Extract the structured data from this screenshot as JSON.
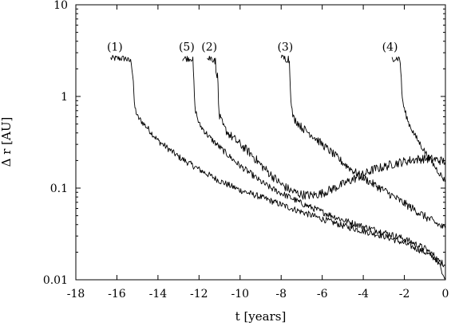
{
  "chart_data": {
    "type": "line",
    "title": "",
    "xlabel": "t [years]",
    "ylabel": "Δ r [AU]",
    "xlim": [
      -18,
      0
    ],
    "ylim": [
      0.01,
      10
    ],
    "yscale": "log",
    "grid": false,
    "x_ticks": [
      -18,
      -16,
      -14,
      -12,
      -10,
      -8,
      -6,
      -4,
      -2,
      0
    ],
    "y_ticks": [
      0.01,
      0.1,
      1,
      10
    ],
    "x_tick_labels": [
      "-18",
      "-16",
      "-14",
      "-12",
      "-10",
      "-8",
      "-6",
      "-4",
      "-2",
      "0"
    ],
    "y_tick_labels": [
      "0.01",
      "0.1",
      "1",
      "10"
    ],
    "annotations": [
      {
        "text": "(1)",
        "x": -16.1,
        "y": 3.5
      },
      {
        "text": "(5)",
        "x": -12.6,
        "y": 3.5
      },
      {
        "text": "(2)",
        "x": -11.5,
        "y": 3.5
      },
      {
        "text": "(3)",
        "x": -7.8,
        "y": 3.5
      },
      {
        "text": "(4)",
        "x": -2.7,
        "y": 3.5
      }
    ],
    "series": [
      {
        "label": "(1)",
        "color": "#000000",
        "noise": 0.035,
        "points": [
          [
            -16.3,
            2.6
          ],
          [
            -15.55,
            2.6
          ],
          [
            -15.5,
            2.5
          ],
          [
            -15.3,
            2.4
          ],
          [
            -15.2,
            1.5
          ],
          [
            -15.15,
            0.8
          ],
          [
            -15.0,
            0.6
          ],
          [
            -14.5,
            0.45
          ],
          [
            -14.0,
            0.33
          ],
          [
            -13.0,
            0.22
          ],
          [
            -12.0,
            0.16
          ],
          [
            -11.0,
            0.12
          ],
          [
            -10.0,
            0.095
          ],
          [
            -9.0,
            0.08
          ],
          [
            -8.0,
            0.066
          ],
          [
            -7.0,
            0.055
          ],
          [
            -6.0,
            0.046
          ],
          [
            -5.0,
            0.039
          ],
          [
            -4.0,
            0.034
          ],
          [
            -3.0,
            0.03
          ],
          [
            -2.0,
            0.025
          ],
          [
            -1.0,
            0.02
          ],
          [
            -0.5,
            0.017
          ],
          [
            0.0,
            0.0145
          ]
        ]
      },
      {
        "label": "(5)",
        "color": "#000000",
        "noise": 0.035,
        "points": [
          [
            -12.8,
            2.6
          ],
          [
            -12.35,
            2.6
          ],
          [
            -12.3,
            2.5
          ],
          [
            -12.25,
            1.4
          ],
          [
            -12.2,
            0.75
          ],
          [
            -12.0,
            0.5
          ],
          [
            -11.5,
            0.36
          ],
          [
            -11.0,
            0.28
          ],
          [
            -10.5,
            0.22
          ],
          [
            -10.0,
            0.175
          ],
          [
            -9.5,
            0.145
          ],
          [
            -9.0,
            0.118
          ],
          [
            -8.5,
            0.1
          ],
          [
            -8.0,
            0.088
          ],
          [
            -7.5,
            0.078
          ],
          [
            -7.0,
            0.068
          ],
          [
            -6.0,
            0.055
          ],
          [
            -5.0,
            0.045
          ],
          [
            -4.0,
            0.038
          ],
          [
            -3.0,
            0.033
          ],
          [
            -2.0,
            0.028
          ],
          [
            -1.0,
            0.022
          ],
          [
            -0.5,
            0.018
          ],
          [
            0.0,
            0.0105
          ]
        ]
      },
      {
        "label": "(2)",
        "color": "#000000",
        "noise": 0.05,
        "points": [
          [
            -11.6,
            2.6
          ],
          [
            -11.25,
            2.6
          ],
          [
            -11.2,
            2.4
          ],
          [
            -11.15,
            1.6
          ],
          [
            -11.1,
            2.0
          ],
          [
            -11.05,
            0.8
          ],
          [
            -11.0,
            0.6
          ],
          [
            -10.8,
            0.46
          ],
          [
            -10.5,
            0.38
          ],
          [
            -10.0,
            0.3
          ],
          [
            -9.5,
            0.24
          ],
          [
            -9.0,
            0.18
          ],
          [
            -8.5,
            0.14
          ],
          [
            -8.0,
            0.11
          ],
          [
            -7.5,
            0.093
          ],
          [
            -7.0,
            0.085
          ],
          [
            -6.5,
            0.083
          ],
          [
            -6.0,
            0.088
          ],
          [
            -5.5,
            0.098
          ],
          [
            -5.0,
            0.11
          ],
          [
            -4.5,
            0.125
          ],
          [
            -4.0,
            0.14
          ],
          [
            -3.5,
            0.16
          ],
          [
            -3.0,
            0.17
          ],
          [
            -2.5,
            0.185
          ],
          [
            -2.0,
            0.195
          ],
          [
            -1.5,
            0.205
          ],
          [
            -1.0,
            0.21
          ],
          [
            -0.5,
            0.205
          ],
          [
            0.0,
            0.195
          ]
        ]
      },
      {
        "label": "(3)",
        "color": "#000000",
        "noise": 0.045,
        "points": [
          [
            -8.0,
            2.6
          ],
          [
            -7.65,
            2.6
          ],
          [
            -7.6,
            2.4
          ],
          [
            -7.55,
            1.3
          ],
          [
            -7.5,
            0.75
          ],
          [
            -7.4,
            0.58
          ],
          [
            -7.2,
            0.52
          ],
          [
            -7.0,
            0.46
          ],
          [
            -6.5,
            0.38
          ],
          [
            -6.0,
            0.3
          ],
          [
            -5.5,
            0.24
          ],
          [
            -5.0,
            0.19
          ],
          [
            -4.5,
            0.155
          ],
          [
            -4.0,
            0.13
          ],
          [
            -3.5,
            0.11
          ],
          [
            -3.0,
            0.095
          ],
          [
            -2.5,
            0.08
          ],
          [
            -2.0,
            0.068
          ],
          [
            -1.5,
            0.058
          ],
          [
            -1.0,
            0.049
          ],
          [
            -0.5,
            0.042
          ],
          [
            0.0,
            0.036
          ]
        ]
      },
      {
        "label": "(4)",
        "color": "#000000",
        "noise": 0.035,
        "points": [
          [
            -2.6,
            2.6
          ],
          [
            -2.25,
            2.6
          ],
          [
            -2.2,
            2.4
          ],
          [
            -2.15,
            1.5
          ],
          [
            -2.1,
            0.95
          ],
          [
            -2.0,
            0.72
          ],
          [
            -1.8,
            0.52
          ],
          [
            -1.5,
            0.38
          ],
          [
            -1.0,
            0.25
          ],
          [
            -0.5,
            0.17
          ],
          [
            0.0,
            0.118
          ]
        ]
      }
    ]
  }
}
